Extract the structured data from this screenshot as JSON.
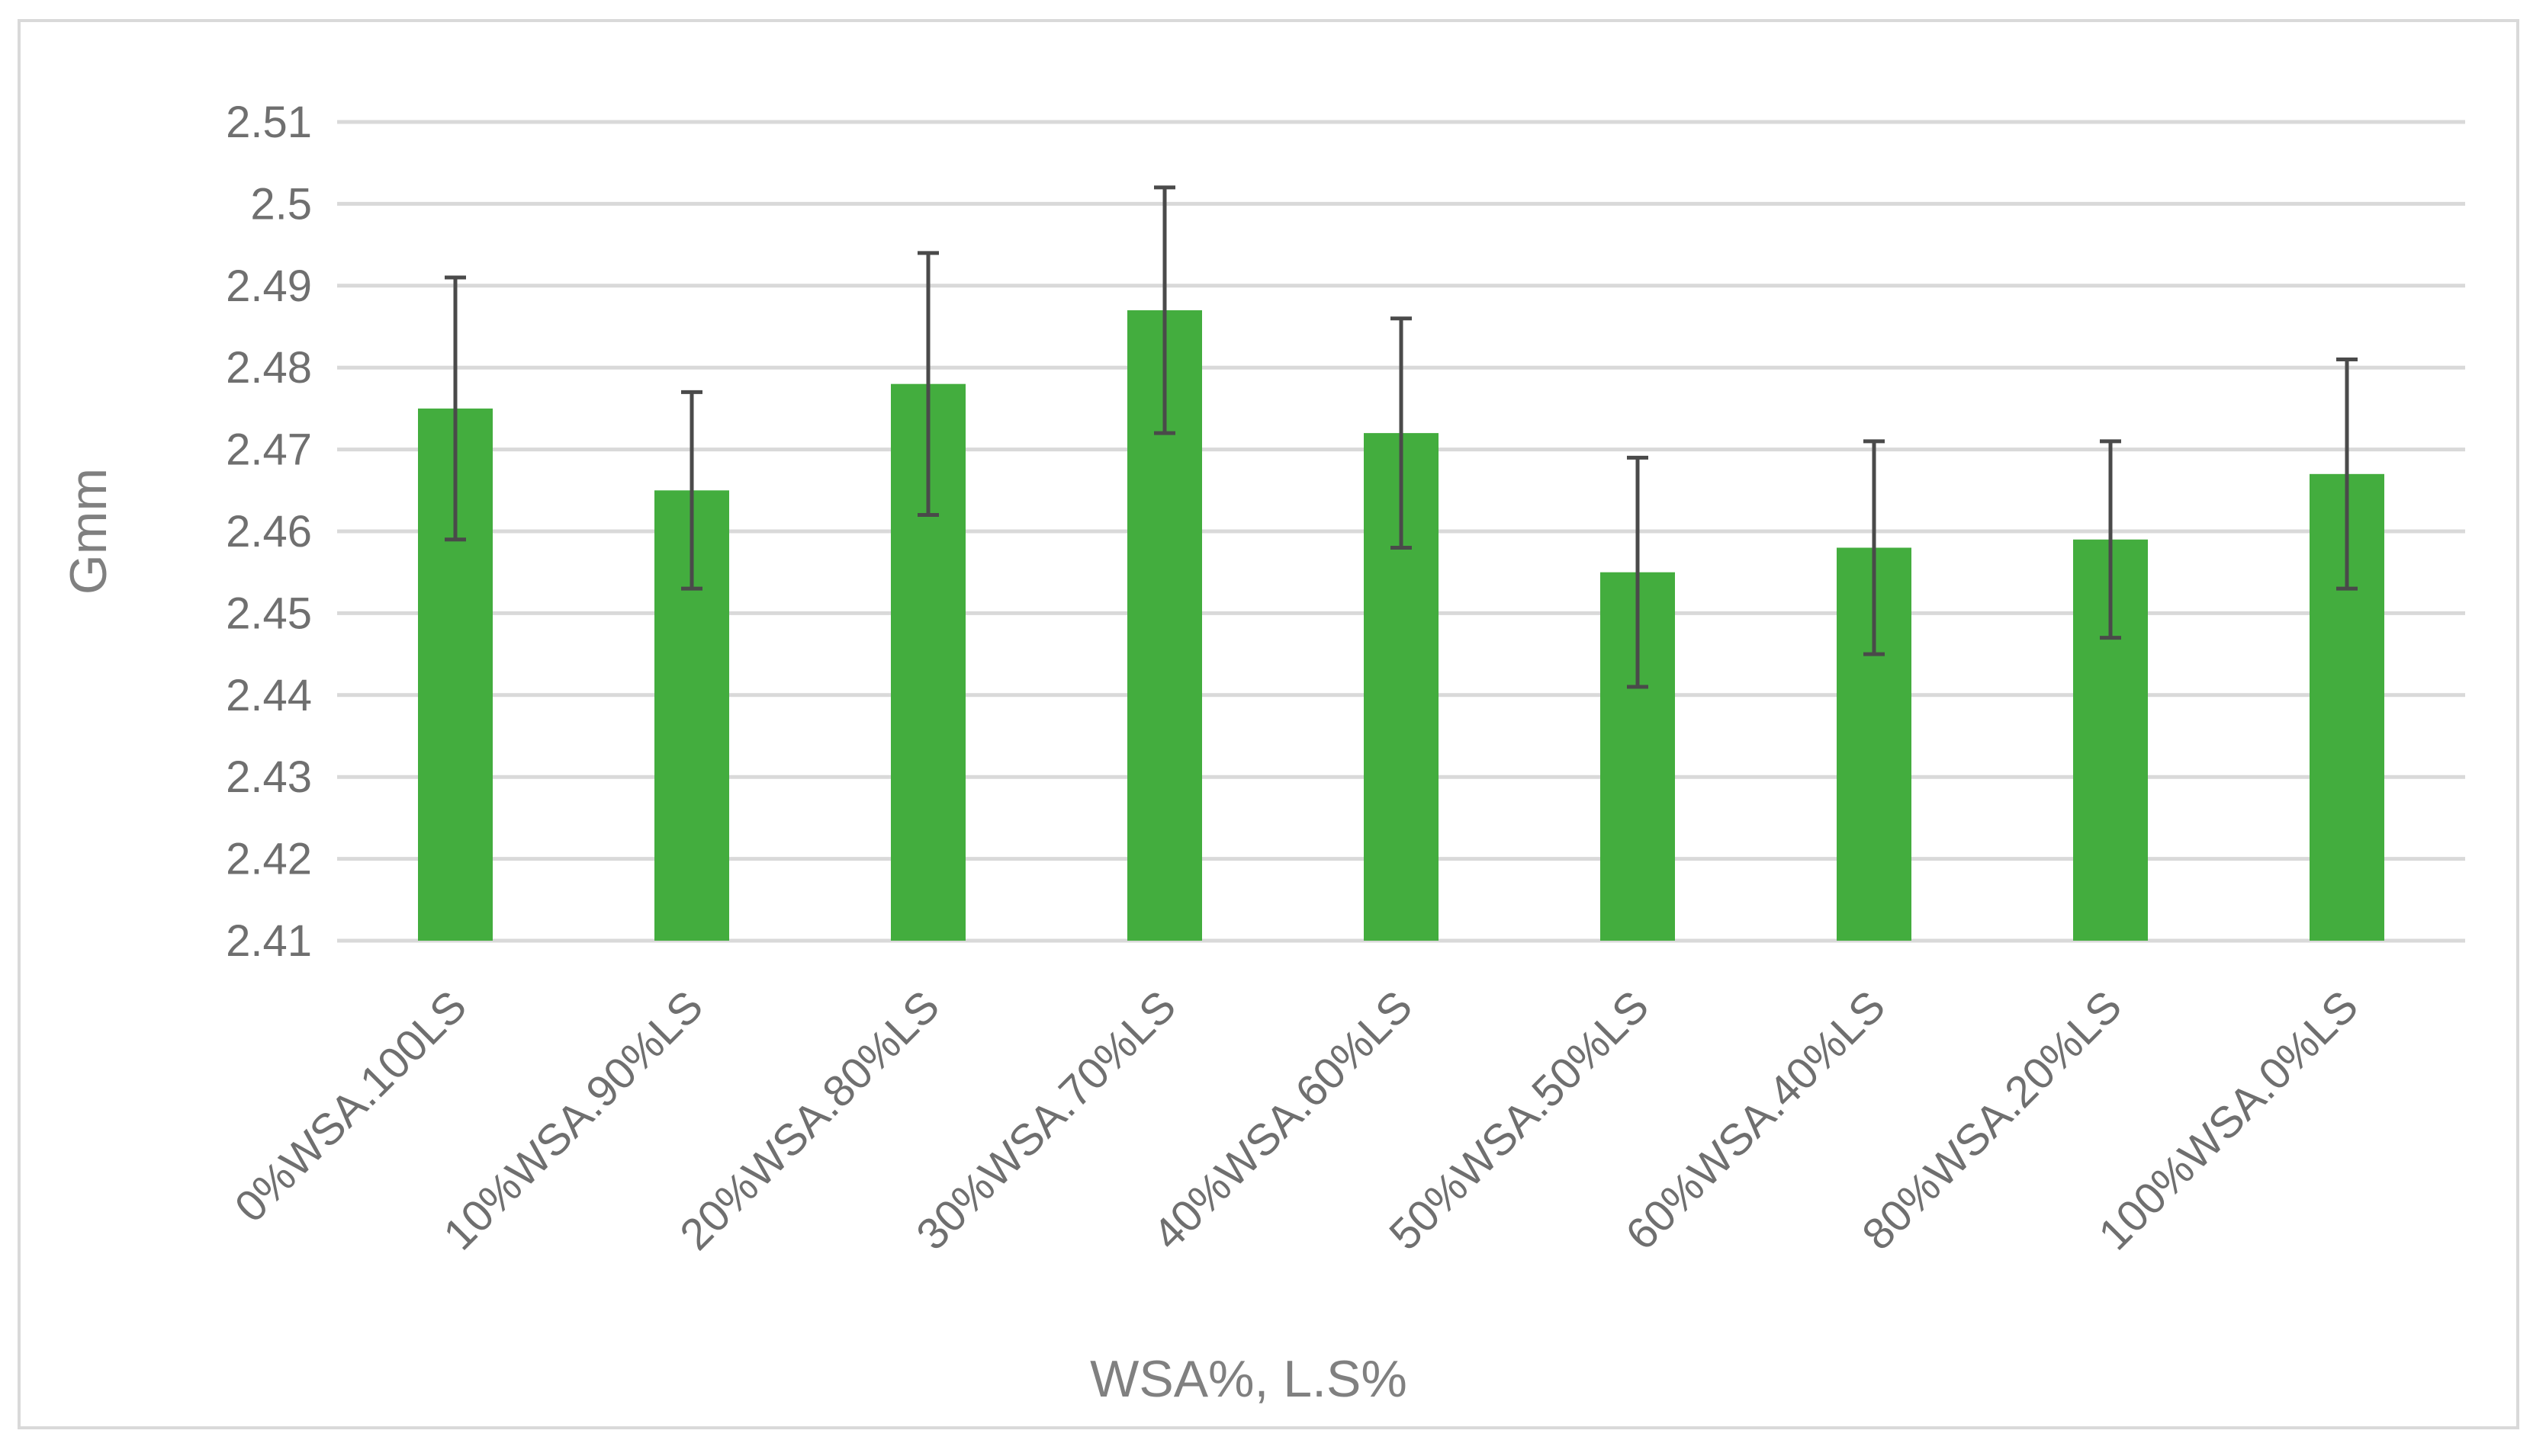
{
  "chart_data": {
    "type": "bar",
    "title": "",
    "xlabel": "WSA%, L.S%",
    "ylabel": "Gmm",
    "ylim": [
      2.41,
      2.51
    ],
    "y_ticks": [
      "2.41",
      "2.42",
      "2.43",
      "2.44",
      "2.45",
      "2.46",
      "2.47",
      "2.48",
      "2.49",
      "2.5",
      "2.51"
    ],
    "y_tick_values": [
      2.41,
      2.42,
      2.43,
      2.44,
      2.45,
      2.46,
      2.47,
      2.48,
      2.49,
      2.5,
      2.51
    ],
    "categories": [
      "0%WSA.100LS",
      "10%WSA.90%LS",
      "20%WSA.80%LS",
      "30%WSA.70%LS",
      "40%WSA.60%LS",
      "50%WSA.50%LS",
      "60%WSA.40%LS",
      "80%WSA.20%LS",
      "100%WSA.0%LS"
    ],
    "values": [
      2.475,
      2.465,
      2.478,
      2.487,
      2.472,
      2.455,
      2.458,
      2.459,
      2.467
    ],
    "error_low": [
      2.459,
      2.453,
      2.462,
      2.472,
      2.458,
      2.441,
      2.445,
      2.447,
      2.453
    ],
    "error_high": [
      2.491,
      2.477,
      2.494,
      2.502,
      2.486,
      2.469,
      2.471,
      2.471,
      2.481
    ],
    "grid": true,
    "legend": "none",
    "colors": {
      "bar": "#43ad3e",
      "error_bar": "#4a4a4a",
      "grid": "#d9d9d9",
      "tick_text": "#6f6f6f",
      "axis_title": "#808080"
    }
  }
}
